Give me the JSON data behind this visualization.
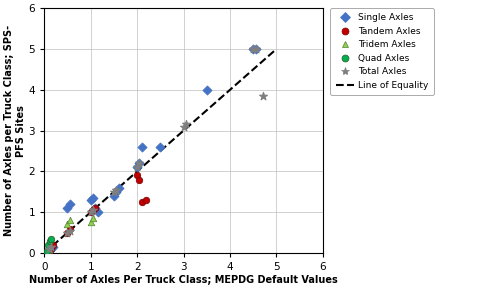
{
  "title": "",
  "xlabel": "Number of Axles Per Truck Class; MEPDG Default Values",
  "ylabel": "Number of Axles per Truck Class; SPS-\nPFS Sites",
  "xlim": [
    0,
    6
  ],
  "ylim": [
    0,
    6
  ],
  "xticks": [
    0,
    1,
    2,
    3,
    4,
    5,
    6
  ],
  "yticks": [
    0,
    1,
    2,
    3,
    4,
    5,
    6
  ],
  "single_axles": {
    "x": [
      0.1,
      0.15,
      0.2,
      0.5,
      0.55,
      1.0,
      1.05,
      1.1,
      1.15,
      1.5,
      1.55,
      1.6,
      2.0,
      2.05,
      2.1,
      2.5,
      3.5,
      4.5,
      4.55
    ],
    "y": [
      0.05,
      0.1,
      0.15,
      1.1,
      1.2,
      1.3,
      1.35,
      1.1,
      1.0,
      1.4,
      1.5,
      1.6,
      2.1,
      2.2,
      2.6,
      2.6,
      4.0,
      5.0,
      5.0
    ],
    "facecolor": "#4472C4",
    "edgecolor": "#4472C4",
    "marker": "D",
    "label": "Single Axles",
    "size": 22
  },
  "tandem_axles": {
    "x": [
      0.05,
      0.1,
      0.15,
      0.2,
      0.5,
      0.55,
      1.0,
      1.05,
      1.1,
      2.0,
      2.05,
      2.1,
      2.2
    ],
    "y": [
      0.0,
      0.05,
      0.1,
      0.2,
      0.5,
      0.6,
      1.0,
      1.05,
      1.1,
      1.9,
      1.8,
      1.25,
      1.3
    ],
    "facecolor": "#C00000",
    "edgecolor": "#7B0000",
    "marker": "o",
    "label": "Tandem Axles",
    "size": 22
  },
  "tridem_axles": {
    "x": [
      0.05,
      0.1,
      0.5,
      0.55,
      1.0,
      1.05
    ],
    "y": [
      0.05,
      0.1,
      0.7,
      0.8,
      0.75,
      0.85
    ],
    "facecolor": "#92D050",
    "edgecolor": "#538135",
    "marker": "^",
    "label": "Tridem Axles",
    "size": 22
  },
  "quad_axles": {
    "x": [
      0.0,
      0.05,
      0.08,
      0.12,
      0.15
    ],
    "y": [
      0.0,
      0.05,
      0.2,
      0.3,
      0.35
    ],
    "facecolor": "#00B050",
    "edgecolor": "#375623",
    "marker": "o",
    "label": "Quad Axles",
    "size": 22
  },
  "total_axles": {
    "x": [
      0.1,
      0.15,
      0.5,
      0.55,
      1.0,
      1.05,
      1.5,
      1.55,
      2.0,
      2.05,
      3.0,
      3.05,
      4.5,
      4.55,
      4.7
    ],
    "y": [
      0.1,
      0.15,
      0.5,
      0.55,
      1.0,
      1.05,
      1.5,
      1.55,
      2.1,
      2.2,
      3.1,
      3.15,
      5.0,
      5.0,
      3.85
    ],
    "color": "#7F7F7F",
    "marker": "*",
    "label": "Total Axles",
    "size": 35
  },
  "equality_line": {
    "x": [
      0,
      5
    ],
    "y": [
      0,
      5
    ],
    "color": "black",
    "linestyle": "--",
    "label": "Line of Equality"
  },
  "background_color": "#FFFFFF",
  "grid_color": "#BFBFBF",
  "figsize": [
    4.82,
    2.89
  ],
  "dpi": 100
}
